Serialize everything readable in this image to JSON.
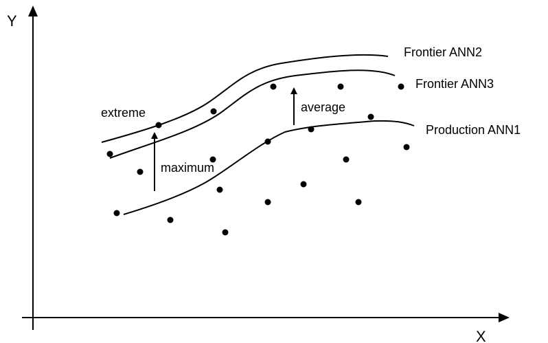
{
  "axes": {
    "x_label": "X",
    "y_label": "Y"
  },
  "curves": {
    "frontier_ann2": "Frontier  ANN2",
    "frontier_ann3": "Frontier  ANN3",
    "production_ann1": "Production ANN1"
  },
  "annotations": {
    "extreme": "extreme",
    "maximum": "maximum",
    "average": "average"
  }
}
